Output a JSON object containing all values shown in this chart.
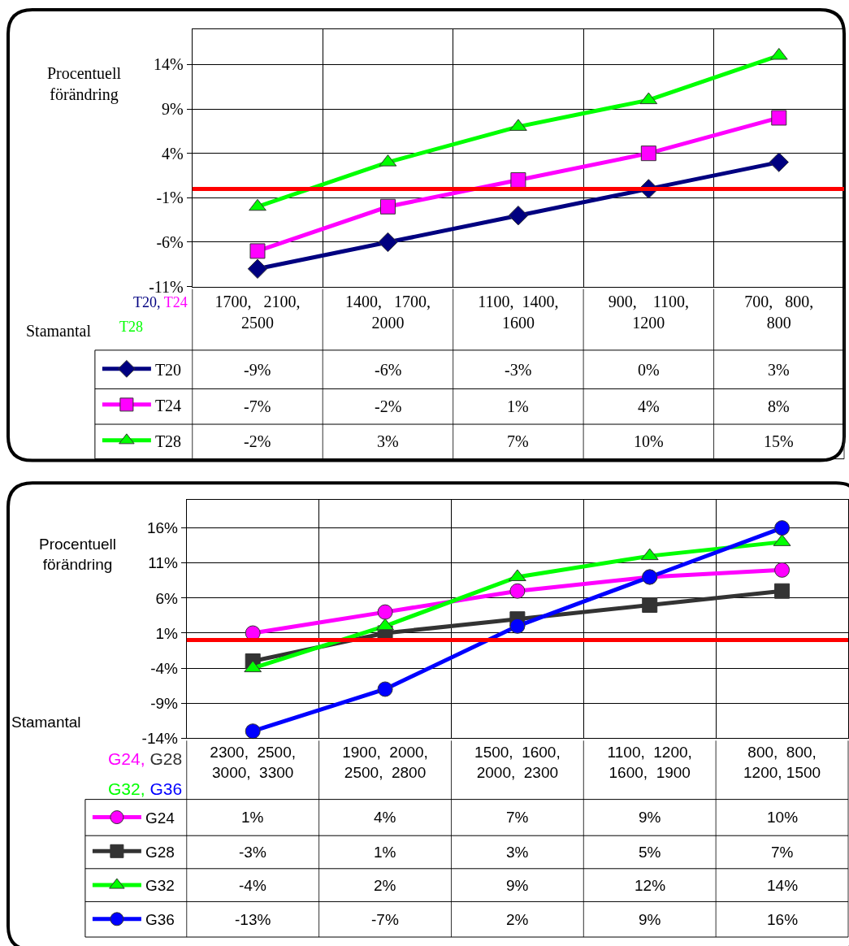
{
  "chart_data": [
    {
      "type": "line",
      "ylabel": "Procentuell\nförändring",
      "xlabel": "Stamantal",
      "categories": [
        "1700,   2100,\n2500",
        "1400,   1700,\n2000",
        "1100,  1400,\n1600",
        "900,    1100,\n1200",
        "700,   800,\n800"
      ],
      "series": [
        {
          "name": "T20",
          "color": "#000080",
          "marker": "diamond",
          "values": [
            -9,
            -6,
            -3,
            0,
            3
          ],
          "value_labels": [
            "-9%",
            "-6%",
            "-3%",
            "0%",
            "3%"
          ]
        },
        {
          "name": "T24",
          "color": "#ff00ff",
          "marker": "square",
          "values": [
            -7,
            -2,
            1,
            4,
            8
          ],
          "value_labels": [
            "-7%",
            "-2%",
            "1%",
            "4%",
            "8%"
          ]
        },
        {
          "name": "T28",
          "color": "#00ff00",
          "marker": "triangle",
          "values": [
            -2,
            3,
            7,
            10,
            15
          ],
          "value_labels": [
            "-2%",
            "3%",
            "7%",
            "10%",
            "15%"
          ]
        }
      ],
      "ylim": [
        -11,
        18
      ],
      "yticks": [
        {
          "value": -11,
          "label": "-11%"
        },
        {
          "value": -6,
          "label": "-6%"
        },
        {
          "value": -1,
          "label": "-1%"
        },
        {
          "value": 4,
          "label": "4%"
        },
        {
          "value": 9,
          "label": "9%"
        },
        {
          "value": 14,
          "label": "14%"
        }
      ],
      "ref_lines": [
        {
          "axis": "y",
          "value": 0,
          "color": "#ff0000"
        }
      ],
      "annotations": [
        "T20,",
        "T24",
        "T28"
      ],
      "grid": true,
      "legend": "bottom left",
      "line_style": "solid"
    },
    {
      "type": "line",
      "ylabel": "Procentuell\nförändring",
      "xlabel": "Stamantal",
      "categories": [
        "2300,  2500,\n3000,  3300",
        "1900,  2000,\n2500,  2800",
        "1500,  1600,\n2000,  2300",
        "1100,  1200,\n1600,  1900",
        "800,  800,\n1200, 1500"
      ],
      "series": [
        {
          "name": "G24",
          "color": "#ff00ff",
          "marker": "circle",
          "values": [
            1,
            4,
            7,
            9,
            10
          ],
          "value_labels": [
            "1%",
            "4%",
            "7%",
            "9%",
            "10%"
          ]
        },
        {
          "name": "G28",
          "color": "#333333",
          "marker": "square",
          "values": [
            -3,
            1,
            3,
            5,
            7
          ],
          "value_labels": [
            "-3%",
            "1%",
            "3%",
            "5%",
            "7%"
          ]
        },
        {
          "name": "G32",
          "color": "#00ff00",
          "marker": "triangle",
          "values": [
            -4,
            2,
            9,
            12,
            14
          ],
          "value_labels": [
            "-4%",
            "2%",
            "9%",
            "12%",
            "14%"
          ]
        },
        {
          "name": "G36",
          "color": "#0000ff",
          "marker": "circle",
          "values": [
            -13,
            -7,
            2,
            9,
            16
          ],
          "value_labels": [
            "-13%",
            "-7%",
            "2%",
            "9%",
            "16%"
          ]
        }
      ],
      "ylim": [
        -14,
        20
      ],
      "yticks": [
        {
          "value": -14,
          "label": "-14%"
        },
        {
          "value": -9,
          "label": "-9%"
        },
        {
          "value": -4,
          "label": "-4%"
        },
        {
          "value": 1,
          "label": "1%"
        },
        {
          "value": 6,
          "label": "6%"
        },
        {
          "value": 11,
          "label": "11%"
        },
        {
          "value": 16,
          "label": "16%"
        }
      ],
      "ref_lines": [
        {
          "axis": "y",
          "value": 0,
          "color": "#ff0000"
        }
      ],
      "annotations": [
        "G24,",
        "G28",
        "G32,",
        "G36"
      ],
      "grid": true,
      "legend": "bottom left",
      "line_style": "solid"
    }
  ]
}
